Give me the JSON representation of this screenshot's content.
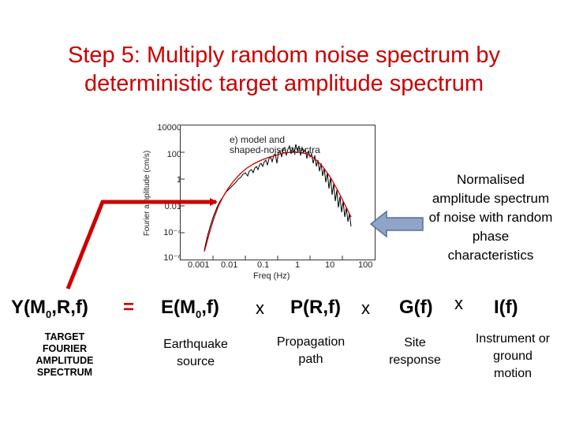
{
  "title_lines": [
    "Step 5: Multiply random noise spectrum by",
    "deterministic target amplitude spectrum"
  ],
  "plot": {
    "caption_lines": [
      "e) model and",
      "shaped-noise spectra"
    ],
    "ylabel": "Fourier amplitude (cm/s)",
    "xlabel": "Freq (Hz)",
    "yticks": [
      "10000",
      "100",
      "1",
      "0.01",
      "10⁻⁴",
      "10⁻⁶"
    ],
    "xticks": [
      "0.001",
      "0.01",
      "0.1",
      "1",
      "10",
      "100"
    ]
  },
  "annotation": {
    "lines": [
      "Normalised",
      "amplitude spectrum",
      "of noise with random",
      "phase",
      "characteristics"
    ]
  },
  "equation": {
    "lhs": {
      "main": "Y(M",
      "sub": "0",
      "rest": ",R,f)"
    },
    "equals": "=",
    "e_term": {
      "main": "E(M",
      "sub": "0",
      "rest": ",f)"
    },
    "times": "x",
    "p_term": "P(R,f)",
    "g_term": "G(f)",
    "i_term": "I(f)"
  },
  "labels": {
    "target": [
      "TARGET",
      "FOURIER",
      "AMPLITUDE",
      "SPECTRUM"
    ],
    "earthquake": [
      "Earthquake",
      "source"
    ],
    "propagation": [
      "Propagation",
      "path"
    ],
    "site": [
      "Site",
      "response"
    ],
    "instrument": [
      "Instrument or",
      "ground",
      "motion"
    ]
  },
  "colors": {
    "accent": "#cc0000",
    "arrow_fill": "#8ea4c8",
    "arrow_stroke": "#5a6f94",
    "model_curve": "#cc0000",
    "noise_curve": "#000000"
  }
}
